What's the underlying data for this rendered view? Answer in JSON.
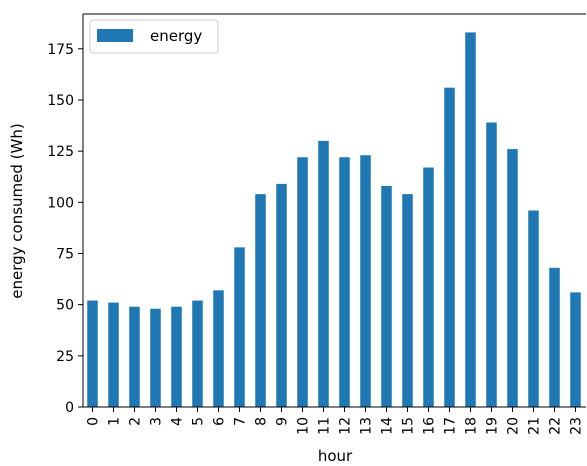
{
  "chart_data": {
    "type": "bar",
    "categories": [
      "0",
      "1",
      "2",
      "3",
      "4",
      "5",
      "6",
      "7",
      "8",
      "9",
      "10",
      "11",
      "12",
      "13",
      "14",
      "15",
      "16",
      "17",
      "18",
      "19",
      "20",
      "21",
      "22",
      "23"
    ],
    "series": [
      {
        "name": "energy",
        "values": [
          52,
          51,
          49,
          48,
          49,
          52,
          57,
          78,
          104,
          109,
          122,
          130,
          122,
          123,
          108,
          104,
          117,
          156,
          183,
          139,
          126,
          96,
          68,
          56
        ]
      }
    ],
    "title": "",
    "xlabel": "hour",
    "ylabel": "energy consumed (Wh)",
    "ylim": [
      0,
      192
    ],
    "yticks": [
      0,
      25,
      50,
      75,
      100,
      125,
      150,
      175
    ],
    "grid": false,
    "legend": "top-left",
    "colors": {
      "bar": "#1f77b4",
      "axis": "#000000",
      "background": "#ffffff"
    }
  }
}
